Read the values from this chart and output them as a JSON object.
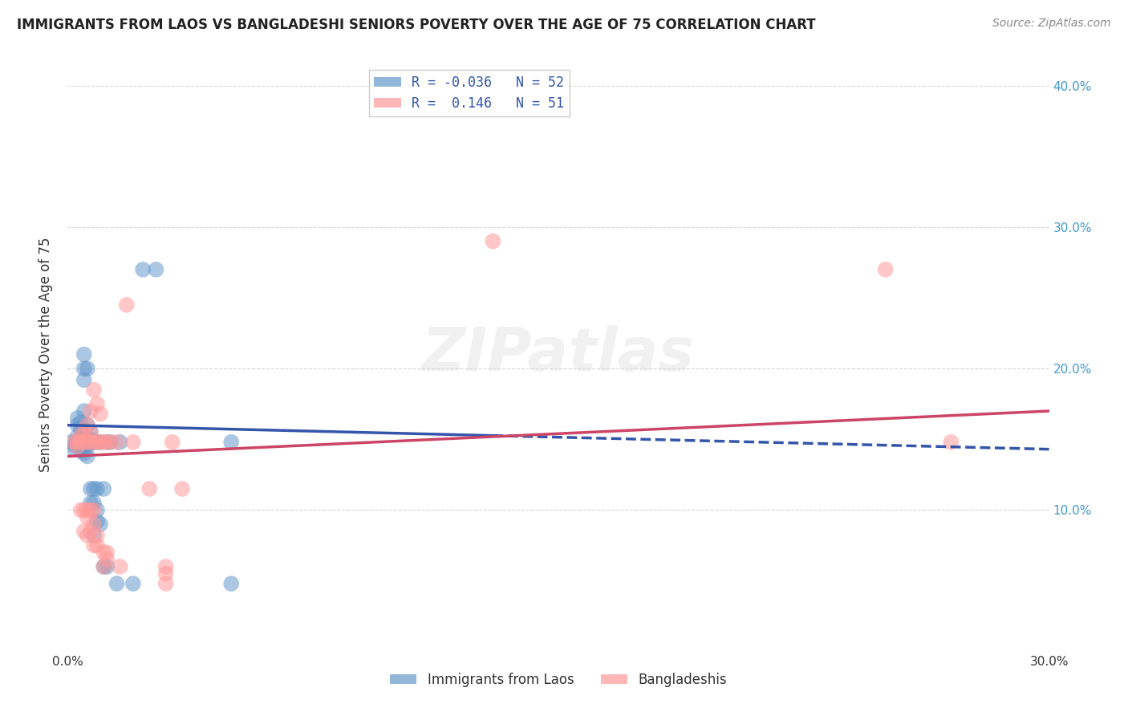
{
  "title": "IMMIGRANTS FROM LAOS VS BANGLADESHI SENIORS POVERTY OVER THE AGE OF 75 CORRELATION CHART",
  "source": "Source: ZipAtlas.com",
  "ylabel": "Seniors Poverty Over the Age of 75",
  "xlim": [
    0.0,
    0.3
  ],
  "ylim": [
    0.0,
    0.42
  ],
  "yticks": [
    0.1,
    0.2,
    0.3,
    0.4
  ],
  "ytick_labels": [
    "10.0%",
    "20.0%",
    "30.0%",
    "40.0%"
  ],
  "background_color": "#ffffff",
  "grid_color": "#cccccc",
  "color_blue": "#6699cc",
  "color_pink": "#ff9999",
  "color_blue_line": "#3355aa",
  "color_pink_line": "#cc4466",
  "watermark": "ZIPatlas",
  "series1_name": "Immigrants from Laos",
  "series2_name": "Bangladeshis",
  "blue_points": [
    [
      0.001,
      0.148
    ],
    [
      0.002,
      0.146
    ],
    [
      0.002,
      0.143
    ],
    [
      0.003,
      0.148
    ],
    [
      0.003,
      0.147
    ],
    [
      0.003,
      0.152
    ],
    [
      0.003,
      0.16
    ],
    [
      0.003,
      0.165
    ],
    [
      0.004,
      0.142
    ],
    [
      0.004,
      0.15
    ],
    [
      0.004,
      0.158
    ],
    [
      0.004,
      0.162
    ],
    [
      0.005,
      0.14
    ],
    [
      0.005,
      0.145
    ],
    [
      0.005,
      0.148
    ],
    [
      0.005,
      0.153
    ],
    [
      0.005,
      0.17
    ],
    [
      0.005,
      0.192
    ],
    [
      0.005,
      0.2
    ],
    [
      0.005,
      0.21
    ],
    [
      0.006,
      0.138
    ],
    [
      0.006,
      0.145
    ],
    [
      0.006,
      0.148
    ],
    [
      0.006,
      0.16
    ],
    [
      0.006,
      0.2
    ],
    [
      0.007,
      0.105
    ],
    [
      0.007,
      0.115
    ],
    [
      0.007,
      0.148
    ],
    [
      0.007,
      0.15
    ],
    [
      0.007,
      0.155
    ],
    [
      0.008,
      0.082
    ],
    [
      0.008,
      0.105
    ],
    [
      0.008,
      0.115
    ],
    [
      0.008,
      0.148
    ],
    [
      0.009,
      0.092
    ],
    [
      0.009,
      0.1
    ],
    [
      0.009,
      0.115
    ],
    [
      0.009,
      0.148
    ],
    [
      0.01,
      0.09
    ],
    [
      0.01,
      0.148
    ],
    [
      0.011,
      0.06
    ],
    [
      0.011,
      0.115
    ],
    [
      0.012,
      0.06
    ],
    [
      0.012,
      0.148
    ],
    [
      0.013,
      0.148
    ],
    [
      0.015,
      0.048
    ],
    [
      0.016,
      0.148
    ],
    [
      0.02,
      0.048
    ],
    [
      0.023,
      0.27
    ],
    [
      0.027,
      0.27
    ],
    [
      0.05,
      0.048
    ],
    [
      0.05,
      0.148
    ]
  ],
  "pink_points": [
    [
      0.002,
      0.148
    ],
    [
      0.003,
      0.145
    ],
    [
      0.003,
      0.148
    ],
    [
      0.004,
      0.1
    ],
    [
      0.004,
      0.148
    ],
    [
      0.004,
      0.152
    ],
    [
      0.005,
      0.085
    ],
    [
      0.005,
      0.1
    ],
    [
      0.005,
      0.148
    ],
    [
      0.005,
      0.155
    ],
    [
      0.006,
      0.082
    ],
    [
      0.006,
      0.095
    ],
    [
      0.006,
      0.1
    ],
    [
      0.006,
      0.148
    ],
    [
      0.006,
      0.16
    ],
    [
      0.007,
      0.085
    ],
    [
      0.007,
      0.1
    ],
    [
      0.007,
      0.148
    ],
    [
      0.007,
      0.155
    ],
    [
      0.007,
      0.17
    ],
    [
      0.008,
      0.075
    ],
    [
      0.008,
      0.09
    ],
    [
      0.008,
      0.1
    ],
    [
      0.008,
      0.148
    ],
    [
      0.008,
      0.185
    ],
    [
      0.009,
      0.075
    ],
    [
      0.009,
      0.082
    ],
    [
      0.009,
      0.148
    ],
    [
      0.009,
      0.175
    ],
    [
      0.01,
      0.148
    ],
    [
      0.01,
      0.168
    ],
    [
      0.011,
      0.06
    ],
    [
      0.011,
      0.07
    ],
    [
      0.011,
      0.148
    ],
    [
      0.012,
      0.065
    ],
    [
      0.012,
      0.07
    ],
    [
      0.012,
      0.148
    ],
    [
      0.013,
      0.148
    ],
    [
      0.015,
      0.148
    ],
    [
      0.016,
      0.06
    ],
    [
      0.018,
      0.245
    ],
    [
      0.02,
      0.148
    ],
    [
      0.025,
      0.115
    ],
    [
      0.03,
      0.048
    ],
    [
      0.03,
      0.055
    ],
    [
      0.03,
      0.06
    ],
    [
      0.032,
      0.148
    ],
    [
      0.035,
      0.115
    ],
    [
      0.13,
      0.29
    ],
    [
      0.25,
      0.27
    ],
    [
      0.27,
      0.148
    ]
  ],
  "blue_trendline": {
    "x_start": 0.0,
    "y_start": 0.16,
    "x_end": 0.3,
    "y_end": 0.143
  },
  "pink_trendline": {
    "x_start": 0.0,
    "y_start": 0.138,
    "x_end": 0.3,
    "y_end": 0.17
  }
}
